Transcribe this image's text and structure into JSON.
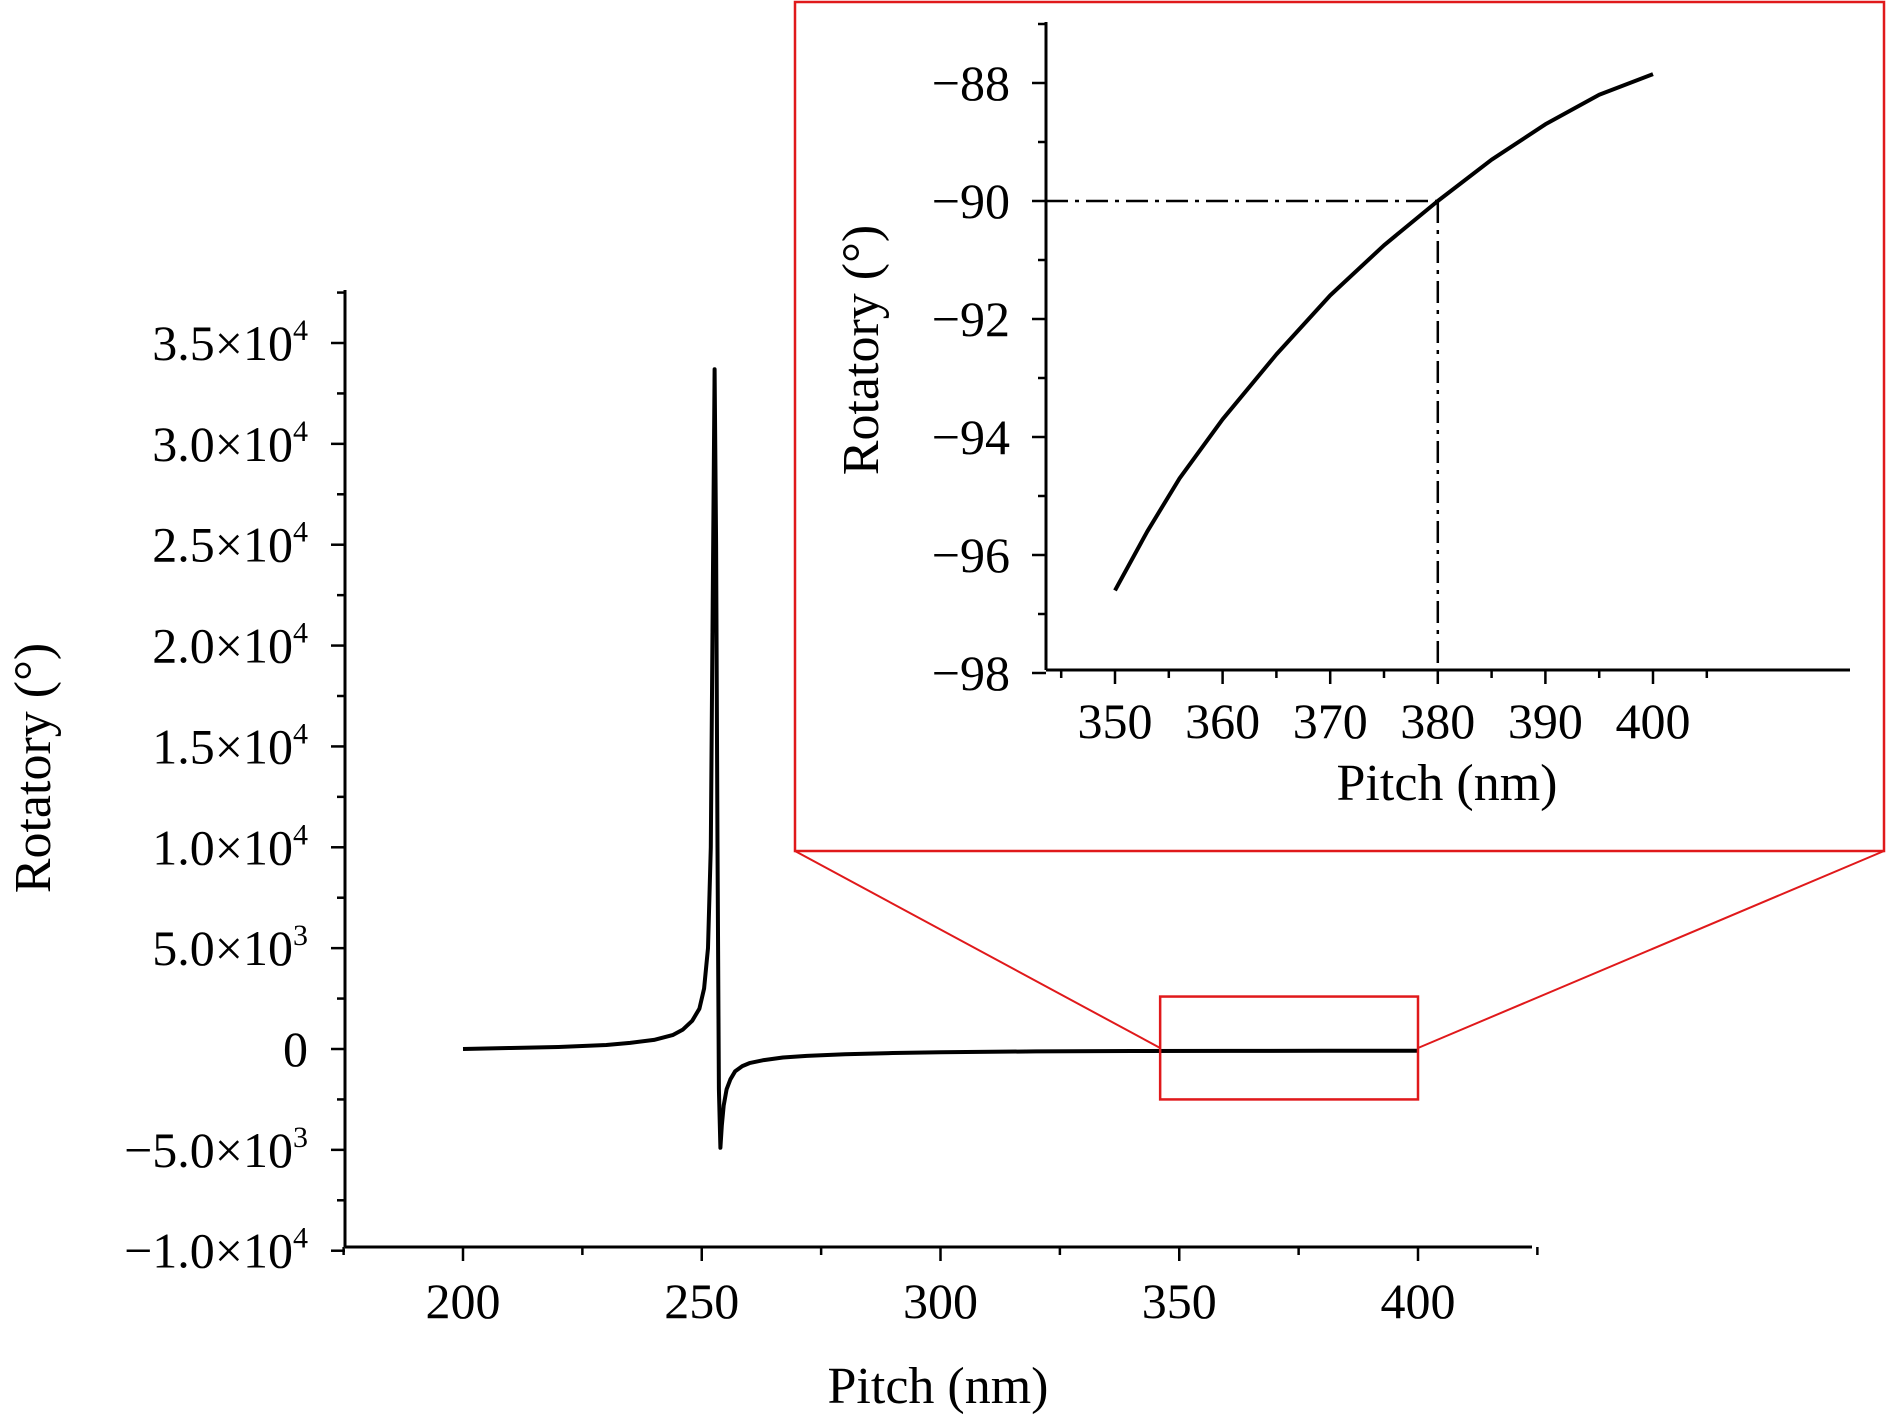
{
  "chart_data": [
    {
      "type": "line",
      "role": "main",
      "xlabel": "Pitch (nm)",
      "ylabel": "Rotatory (°)",
      "xlim": [
        175,
        425
      ],
      "ylim": [
        -10000,
        38000
      ],
      "xticks": [
        200,
        250,
        300,
        350,
        400
      ],
      "xtick_labels": [
        "200",
        "250",
        "300",
        "350",
        "400"
      ],
      "yticks": [
        -10000,
        -5000,
        0,
        5000,
        10000,
        15000,
        20000,
        25000,
        30000,
        35000
      ],
      "ytick_labels": [
        {
          "mant": "−1.0×10",
          "exp": "4"
        },
        {
          "mant": "−5.0×10",
          "exp": "3"
        },
        {
          "mant": "0",
          "exp": ""
        },
        {
          "mant": "5.0×10",
          "exp": "3"
        },
        {
          "mant": "1.0×10",
          "exp": "4"
        },
        {
          "mant": "1.5×10",
          "exp": "4"
        },
        {
          "mant": "2.0×10",
          "exp": "4"
        },
        {
          "mant": "2.5×10",
          "exp": "4"
        },
        {
          "mant": "3.0×10",
          "exp": "4"
        },
        {
          "mant": "3.5×10",
          "exp": "4"
        }
      ],
      "series": [
        {
          "color": "#000000",
          "x": [
            200,
            210,
            220,
            230,
            235,
            240,
            244,
            246,
            248,
            249.5,
            250.5,
            251.3,
            251.9,
            252.3,
            252.7,
            253.0,
            253.3,
            253.6,
            253.9,
            254.2,
            254.6,
            255.2,
            256,
            257,
            258.5,
            260,
            263,
            267,
            272,
            280,
            290,
            300,
            320,
            340,
            360,
            380,
            400
          ],
          "y": [
            0,
            50,
            100,
            200,
            300,
            450,
            700,
            950,
            1400,
            2000,
            3000,
            5000,
            10000,
            22000,
            33700,
            25000,
            10000,
            -2000,
            -4900,
            -3800,
            -2800,
            -2000,
            -1500,
            -1100,
            -850,
            -700,
            -550,
            -420,
            -340,
            -260,
            -200,
            -160,
            -120,
            -100,
            -93,
            -90,
            -88
          ]
        }
      ],
      "zoom_box": {
        "x": [
          346,
          400
        ],
        "y": [
          -2500,
          2600
        ],
        "color": "#e0191b"
      }
    },
    {
      "type": "line",
      "role": "inset",
      "xlabel": "Pitch (nm)",
      "ylabel": "Rotatory (°)",
      "xlim": [
        345,
        405
      ],
      "ylim": [
        -98,
        -87
      ],
      "xticks": [
        350,
        360,
        370,
        380,
        390,
        400
      ],
      "xtick_labels": [
        "350",
        "360",
        "370",
        "380",
        "390",
        "400"
      ],
      "yticks": [
        -98,
        -96,
        -94,
        -92,
        -90,
        -88
      ],
      "ytick_labels": [
        "−98",
        "−96",
        "−94",
        "−92",
        "−90",
        "−88"
      ],
      "border_color": "#e0191b",
      "series": [
        {
          "color": "#000000",
          "x": [
            350,
            353,
            356,
            360,
            365,
            370,
            375,
            380,
            385,
            390,
            395,
            400
          ],
          "y": [
            -96.6,
            -95.6,
            -94.7,
            -93.7,
            -92.6,
            -91.6,
            -90.75,
            -90.0,
            -89.3,
            -88.7,
            -88.2,
            -87.85
          ]
        }
      ],
      "reference_point": {
        "x": 380,
        "y": -90
      }
    }
  ]
}
